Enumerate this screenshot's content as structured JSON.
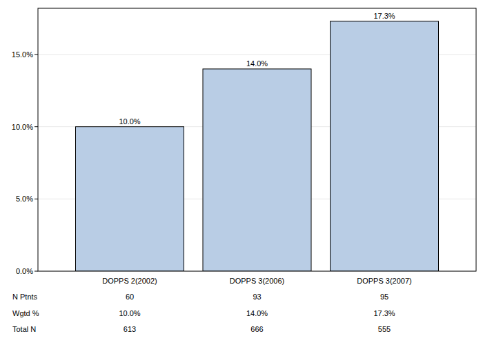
{
  "chart_data": {
    "type": "bar",
    "categories": [
      "DOPPS 2(2002)",
      "DOPPS 3(2006)",
      "DOPPS 3(2007)"
    ],
    "values": [
      10.0,
      14.0,
      17.3
    ],
    "value_labels": [
      "10.0%",
      "14.0%",
      "17.3%"
    ],
    "data_labels": true,
    "color": "#b9cde5",
    "ylim": [
      0,
      18.2
    ],
    "yticks": [
      {
        "value": 0,
        "label": "0.0%"
      },
      {
        "value": 5,
        "label": "5.0%"
      },
      {
        "value": 10,
        "label": "10.0%"
      },
      {
        "value": 15,
        "label": "15.0%"
      }
    ],
    "grid": true,
    "table": {
      "rows": [
        {
          "label": "N Ptnts",
          "cells": [
            "60",
            "93",
            "95"
          ]
        },
        {
          "label": "Wgtd %",
          "cells": [
            "10.0%",
            "14.0%",
            "17.3%"
          ]
        },
        {
          "label": "Total N",
          "cells": [
            "613",
            "666",
            "555"
          ]
        }
      ]
    }
  }
}
